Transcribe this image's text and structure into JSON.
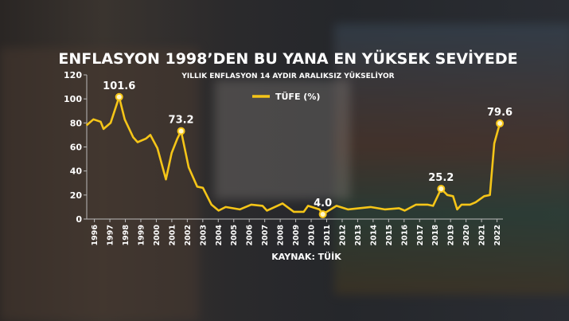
{
  "colors": {
    "line": "#f5c518",
    "text": "#ffffff"
  },
  "chart_data": {
    "type": "line",
    "title": "ENFLASYON 1998’DEN BU YANA EN YÜKSEK SEVİYEDE",
    "subtitle": "YILLIK ENFLASYON 14 AYDIR ARALIKSIZ YÜKSELİYOR",
    "source": "KAYNAK: TÜİK",
    "legend": {
      "label": "TÜFE (%)",
      "placement": "top-center"
    },
    "ylim": [
      0,
      120
    ],
    "yticks": [
      0,
      20,
      40,
      60,
      80,
      100,
      120
    ],
    "xticks": [
      "1996",
      "1997",
      "1998",
      "1999",
      "2000",
      "2001",
      "2002",
      "2003",
      "2004",
      "2005",
      "2006",
      "2007",
      "2008",
      "2009",
      "2010",
      "2011",
      "2012",
      "2013",
      "2014",
      "2015",
      "2016",
      "2017",
      "2018",
      "2019",
      "2020",
      "2021",
      "2022"
    ],
    "grid": false,
    "series": [
      {
        "name": "TÜFE (%)",
        "points": [
          [
            1995.49,
            78
          ],
          [
            1995.94,
            83
          ],
          [
            1996.4,
            81
          ],
          [
            1996.59,
            75
          ],
          [
            1997.05,
            80
          ],
          [
            1997.6,
            101.6
          ],
          [
            1997.96,
            83
          ],
          [
            1998.51,
            68
          ],
          [
            1998.79,
            64
          ],
          [
            1999.34,
            67
          ],
          [
            1999.61,
            70
          ],
          [
            2000.07,
            59
          ],
          [
            2000.62,
            33
          ],
          [
            2000.99,
            55
          ],
          [
            2001.36,
            67
          ],
          [
            2001.6,
            73.2
          ],
          [
            2002.09,
            43
          ],
          [
            2002.64,
            27
          ],
          [
            2003.01,
            26
          ],
          [
            2003.56,
            12
          ],
          [
            2004.02,
            7
          ],
          [
            2004.48,
            10
          ],
          [
            2005.39,
            8
          ],
          [
            2006.13,
            12
          ],
          [
            2006.86,
            11
          ],
          [
            2007.14,
            7
          ],
          [
            2008.15,
            13
          ],
          [
            2008.88,
            6
          ],
          [
            2009.52,
            6
          ],
          [
            2009.8,
            11
          ],
          [
            2010.53,
            8
          ],
          [
            2010.75,
            4.0
          ],
          [
            2011.63,
            11
          ],
          [
            2012.37,
            8
          ],
          [
            2013.1,
            9
          ],
          [
            2013.83,
            10
          ],
          [
            2014.75,
            8
          ],
          [
            2015.67,
            9
          ],
          [
            2016.04,
            7
          ],
          [
            2016.77,
            12
          ],
          [
            2017.5,
            12
          ],
          [
            2017.87,
            11
          ],
          [
            2018.39,
            25.2
          ],
          [
            2018.79,
            20
          ],
          [
            2019.16,
            19
          ],
          [
            2019.43,
            8
          ],
          [
            2019.71,
            12
          ],
          [
            2020.26,
            12
          ],
          [
            2020.62,
            14
          ],
          [
            2021.17,
            19
          ],
          [
            2021.54,
            20
          ],
          [
            2021.82,
            63
          ],
          [
            2022.18,
            79.6
          ]
        ]
      }
    ],
    "annotations": [
      {
        "x": 1997.6,
        "y": 101.6,
        "label": "101.6"
      },
      {
        "x": 2001.6,
        "y": 73.2,
        "label": "73.2"
      },
      {
        "x": 2010.75,
        "y": 4.0,
        "label": "4.0"
      },
      {
        "x": 2018.39,
        "y": 25.2,
        "label": "25.2"
      },
      {
        "x": 2022.18,
        "y": 79.6,
        "label": "79.6"
      }
    ]
  }
}
